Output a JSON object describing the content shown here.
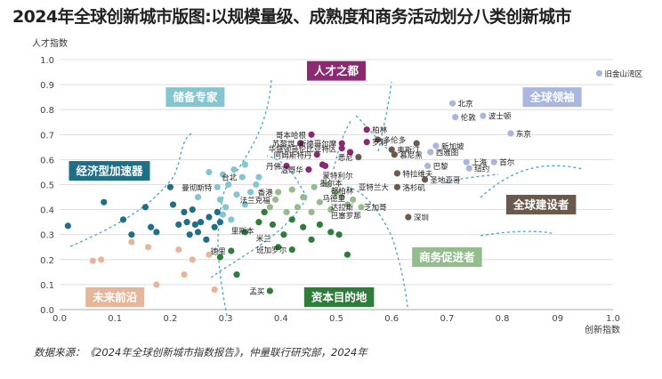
{
  "title": "2024年全球创新城市版图:以规模量级、成熟度和商务活动划分八类创新城市",
  "source": "数据来源：《2024年全球创新城市指数报告》，仲量联行研究部，2024年",
  "colors": {
    "global_leader": "#a9b7e0",
    "talent_hub": "#8b2a73",
    "reserve_expert": "#83c5d0",
    "economic_accelerator": "#1f6f86",
    "future_frontier": "#e6b69a",
    "capital_destination": "#2e7d3a",
    "commerce_promoter": "#93bd8c",
    "global_builder": "#6b5a4c"
  },
  "chart_data": {
    "type": "scatter",
    "xlabel": "创新指数",
    "ylabel": "人才指数",
    "xlim": [
      0,
      1.0
    ],
    "ylim": [
      0,
      1.0
    ],
    "xticks": [
      "0.0",
      "0.1",
      "0.2",
      "0.3",
      "0.4",
      "0.5",
      "0.6",
      "0.7",
      "0.8",
      "09",
      "1.0"
    ],
    "yticks": [
      "0.0",
      "0.1",
      "0.2",
      "0.3",
      "0.4",
      "0.5",
      "0.6",
      "0.7",
      "0.8",
      "0.9",
      "1.0"
    ],
    "categories": [
      {
        "name": "全球领袖",
        "color": "#a9b7e0",
        "label_at": [
          0.89,
          0.85
        ]
      },
      {
        "name": "人才之都",
        "color": "#8b2a73",
        "label_at": [
          0.5,
          0.955
        ]
      },
      {
        "name": "储备专家",
        "color": "#83c5d0",
        "label_at": [
          0.245,
          0.85
        ]
      },
      {
        "name": "经济型加速器",
        "color": "#1f6f86",
        "label_at": [
          0.09,
          0.555
        ]
      },
      {
        "name": "全球建设者",
        "color": "#6b5a4c",
        "label_at": [
          0.87,
          0.42
        ]
      },
      {
        "name": "商务促进者",
        "color": "#93bd8c",
        "label_at": [
          0.7,
          0.21
        ]
      },
      {
        "name": "资本目的地",
        "color": "#2e7d3a",
        "label_at": [
          0.505,
          0.05
        ]
      },
      {
        "name": "未来前沿",
        "color": "#e6b69a",
        "label_at": [
          0.1,
          0.05
        ]
      }
    ],
    "series": [
      {
        "name": "全球领袖",
        "color": "#a9b7e0",
        "points": [
          {
            "label": "旧金山湾区",
            "x": 0.975,
            "y": 0.945
          },
          {
            "label": "北京",
            "x": 0.71,
            "y": 0.825
          },
          {
            "label": "波士顿",
            "x": 0.765,
            "y": 0.775
          },
          {
            "label": "伦敦",
            "x": 0.715,
            "y": 0.77
          },
          {
            "label": "东京",
            "x": 0.815,
            "y": 0.705
          },
          {
            "label": "新加坡",
            "x": 0.68,
            "y": 0.655
          },
          {
            "label": "西雅图",
            "x": 0.67,
            "y": 0.63
          },
          {
            "label": "上海",
            "x": 0.735,
            "y": 0.59
          },
          {
            "label": "首尔",
            "x": 0.785,
            "y": 0.59
          },
          {
            "label": "巴黎",
            "x": 0.665,
            "y": 0.575
          },
          {
            "label": "纽约",
            "x": 0.74,
            "y": 0.565
          }
        ]
      },
      {
        "name": "人才之都",
        "color": "#8b2a73",
        "points": [
          {
            "label": "柏林",
            "x": 0.555,
            "y": 0.72
          },
          {
            "label": "斯德哥尔摩",
            "x": 0.51,
            "y": 0.665
          },
          {
            "label": "罗利",
            "x": 0.555,
            "y": 0.67
          },
          {
            "label": "华盛顿哥伦比亚特区",
            "x": 0.51,
            "y": 0.645
          },
          {
            "label": "",
            "x": 0.525,
            "y": 0.63
          },
          {
            "label": "哥本哈根",
            "x": 0.455,
            "y": 0.7
          },
          {
            "label": "苏黎世",
            "x": 0.435,
            "y": 0.665
          },
          {
            "label": "阿姆斯特丹",
            "x": 0.465,
            "y": 0.62
          },
          {
            "label": "丹佛",
            "x": 0.41,
            "y": 0.575
          },
          {
            "label": "温哥华",
            "x": 0.45,
            "y": 0.56
          },
          {
            "label": "",
            "x": 0.475,
            "y": 0.58
          },
          {
            "label": "",
            "x": 0.48,
            "y": 0.575
          }
        ]
      },
      {
        "name": "全球建设者",
        "color": "#6b5a4c",
        "points": [
          {
            "label": "多伦多",
            "x": 0.575,
            "y": 0.68
          },
          {
            "label": "奥斯汀",
            "x": 0.6,
            "y": 0.64
          },
          {
            "label": "慕尼黑",
            "x": 0.605,
            "y": 0.62
          },
          {
            "label": "",
            "x": 0.645,
            "y": 0.665
          },
          {
            "label": "悉尼",
            "x": 0.54,
            "y": 0.61
          },
          {
            "label": "特拉维夫",
            "x": 0.61,
            "y": 0.545
          },
          {
            "label": "圣地亚哥",
            "x": 0.66,
            "y": 0.52
          },
          {
            "label": "洛杉矶",
            "x": 0.61,
            "y": 0.49
          },
          {
            "label": "深圳",
            "x": 0.63,
            "y": 0.37
          }
        ]
      },
      {
        "name": "储备专家",
        "color": "#83c5d0",
        "points": [
          {
            "label": "台北",
            "x": 0.33,
            "y": 0.53
          },
          {
            "label": "曼彻斯特",
            "x": 0.285,
            "y": 0.49
          },
          {
            "label": "",
            "x": 0.315,
            "y": 0.56
          },
          {
            "label": "",
            "x": 0.335,
            "y": 0.58
          },
          {
            "label": "",
            "x": 0.295,
            "y": 0.54
          },
          {
            "label": "",
            "x": 0.27,
            "y": 0.55
          },
          {
            "label": "",
            "x": 0.25,
            "y": 0.45
          },
          {
            "label": "",
            "x": 0.29,
            "y": 0.44
          },
          {
            "label": "",
            "x": 0.305,
            "y": 0.5
          },
          {
            "label": "",
            "x": 0.32,
            "y": 0.46
          },
          {
            "label": "",
            "x": 0.335,
            "y": 0.42
          },
          {
            "label": "",
            "x": 0.3,
            "y": 0.41
          },
          {
            "label": "",
            "x": 0.345,
            "y": 0.47
          },
          {
            "label": "",
            "x": 0.355,
            "y": 0.5
          },
          {
            "label": "",
            "x": 0.36,
            "y": 0.53
          },
          {
            "label": "",
            "x": 0.31,
            "y": 0.36
          },
          {
            "label": "",
            "x": 0.295,
            "y": 0.38
          }
        ]
      },
      {
        "name": "经济型加速器",
        "color": "#1f6f86",
        "points": [
          {
            "label": "",
            "x": 0.015,
            "y": 0.335
          },
          {
            "label": "",
            "x": 0.08,
            "y": 0.43
          },
          {
            "label": "",
            "x": 0.115,
            "y": 0.36
          },
          {
            "label": "",
            "x": 0.13,
            "y": 0.3
          },
          {
            "label": "",
            "x": 0.155,
            "y": 0.41
          },
          {
            "label": "",
            "x": 0.165,
            "y": 0.33
          },
          {
            "label": "",
            "x": 0.175,
            "y": 0.31
          },
          {
            "label": "",
            "x": 0.2,
            "y": 0.49
          },
          {
            "label": "",
            "x": 0.215,
            "y": 0.34
          },
          {
            "label": "",
            "x": 0.225,
            "y": 0.39
          },
          {
            "label": "",
            "x": 0.23,
            "y": 0.35
          },
          {
            "label": "",
            "x": 0.235,
            "y": 0.3
          },
          {
            "label": "",
            "x": 0.245,
            "y": 0.34
          },
          {
            "label": "",
            "x": 0.25,
            "y": 0.31
          },
          {
            "label": "",
            "x": 0.255,
            "y": 0.35
          },
          {
            "label": "",
            "x": 0.265,
            "y": 0.28
          },
          {
            "label": "",
            "x": 0.27,
            "y": 0.37
          },
          {
            "label": "",
            "x": 0.28,
            "y": 0.33
          },
          {
            "label": "",
            "x": 0.285,
            "y": 0.39
          },
          {
            "label": "",
            "x": 0.29,
            "y": 0.35
          },
          {
            "label": "",
            "x": 0.24,
            "y": 0.4
          },
          {
            "label": "",
            "x": 0.205,
            "y": 0.42
          }
        ]
      },
      {
        "name": "商务促进者",
        "color": "#93bd8c",
        "points": [
          {
            "label": "香港",
            "x": 0.395,
            "y": 0.47
          },
          {
            "label": "法兰克福",
            "x": 0.39,
            "y": 0.44
          },
          {
            "label": "",
            "x": 0.42,
            "y": 0.48
          },
          {
            "label": "",
            "x": 0.44,
            "y": 0.45
          },
          {
            "label": "",
            "x": 0.46,
            "y": 0.49
          },
          {
            "label": "",
            "x": 0.485,
            "y": 0.5
          },
          {
            "label": "",
            "x": 0.5,
            "y": 0.47
          },
          {
            "label": "",
            "x": 0.51,
            "y": 0.45
          },
          {
            "label": "",
            "x": 0.47,
            "y": 0.43
          },
          {
            "label": "",
            "x": 0.43,
            "y": 0.41
          },
          {
            "label": "",
            "x": 0.455,
            "y": 0.39
          },
          {
            "label": "",
            "x": 0.49,
            "y": 0.4
          },
          {
            "label": "",
            "x": 0.52,
            "y": 0.42
          },
          {
            "label": "",
            "x": 0.53,
            "y": 0.44
          },
          {
            "label": "",
            "x": 0.545,
            "y": 0.41
          },
          {
            "label": "",
            "x": 0.38,
            "y": 0.41
          },
          {
            "label": "",
            "x": 0.41,
            "y": 0.39
          }
        ]
      },
      {
        "name": "资本目的地",
        "color": "#2e7d3a",
        "points": [
          {
            "label": "",
            "x": 0.335,
            "y": 0.31
          },
          {
            "label": "",
            "x": 0.36,
            "y": 0.35
          },
          {
            "label": "",
            "x": 0.37,
            "y": 0.39
          },
          {
            "label": "",
            "x": 0.385,
            "y": 0.34
          },
          {
            "label": "",
            "x": 0.405,
            "y": 0.3
          },
          {
            "label": "",
            "x": 0.42,
            "y": 0.36
          },
          {
            "label": "",
            "x": 0.44,
            "y": 0.33
          },
          {
            "label": "",
            "x": 0.455,
            "y": 0.28
          },
          {
            "label": "",
            "x": 0.47,
            "y": 0.34
          },
          {
            "label": "",
            "x": 0.49,
            "y": 0.31
          },
          {
            "label": "",
            "x": 0.505,
            "y": 0.3
          },
          {
            "label": "",
            "x": 0.395,
            "y": 0.25
          },
          {
            "label": "德里",
            "x": 0.31,
            "y": 0.235
          },
          {
            "label": "",
            "x": 0.29,
            "y": 0.21
          },
          {
            "label": "班加罗尔",
            "x": 0.42,
            "y": 0.24
          },
          {
            "label": "",
            "x": 0.52,
            "y": 0.22
          },
          {
            "label": "",
            "x": 0.32,
            "y": 0.14
          },
          {
            "label": "孟买",
            "x": 0.38,
            "y": 0.075
          }
        ]
      },
      {
        "name": "未来前沿",
        "color": "#e6b69a",
        "points": [
          {
            "label": "",
            "x": 0.06,
            "y": 0.195
          },
          {
            "label": "",
            "x": 0.075,
            "y": 0.2
          },
          {
            "label": "",
            "x": 0.13,
            "y": 0.27
          },
          {
            "label": "",
            "x": 0.16,
            "y": 0.25
          },
          {
            "label": "",
            "x": 0.175,
            "y": 0.1
          },
          {
            "label": "",
            "x": 0.215,
            "y": 0.24
          },
          {
            "label": "",
            "x": 0.225,
            "y": 0.14
          },
          {
            "label": "",
            "x": 0.24,
            "y": 0.2
          },
          {
            "label": "",
            "x": 0.27,
            "y": 0.22
          },
          {
            "label": "",
            "x": 0.28,
            "y": 0.08
          }
        ]
      }
    ],
    "annotations": [
      {
        "text": "马德里",
        "x": 0.475,
        "y": 0.445
      },
      {
        "text": "都柏林",
        "x": 0.49,
        "y": 0.475
      },
      {
        "text": "墨尔本",
        "x": 0.47,
        "y": 0.505
      },
      {
        "text": "蒙特利尔",
        "x": 0.475,
        "y": 0.535
      },
      {
        "text": "亚特兰大",
        "x": 0.54,
        "y": 0.49
      },
      {
        "text": "达拉斯",
        "x": 0.49,
        "y": 0.41
      },
      {
        "text": "芝加哥",
        "x": 0.55,
        "y": 0.41
      },
      {
        "text": "巴塞罗那",
        "x": 0.49,
        "y": 0.375
      },
      {
        "text": "里斯本",
        "x": 0.31,
        "y": 0.315
      },
      {
        "text": "米兰",
        "x": 0.355,
        "y": 0.285
      }
    ]
  }
}
